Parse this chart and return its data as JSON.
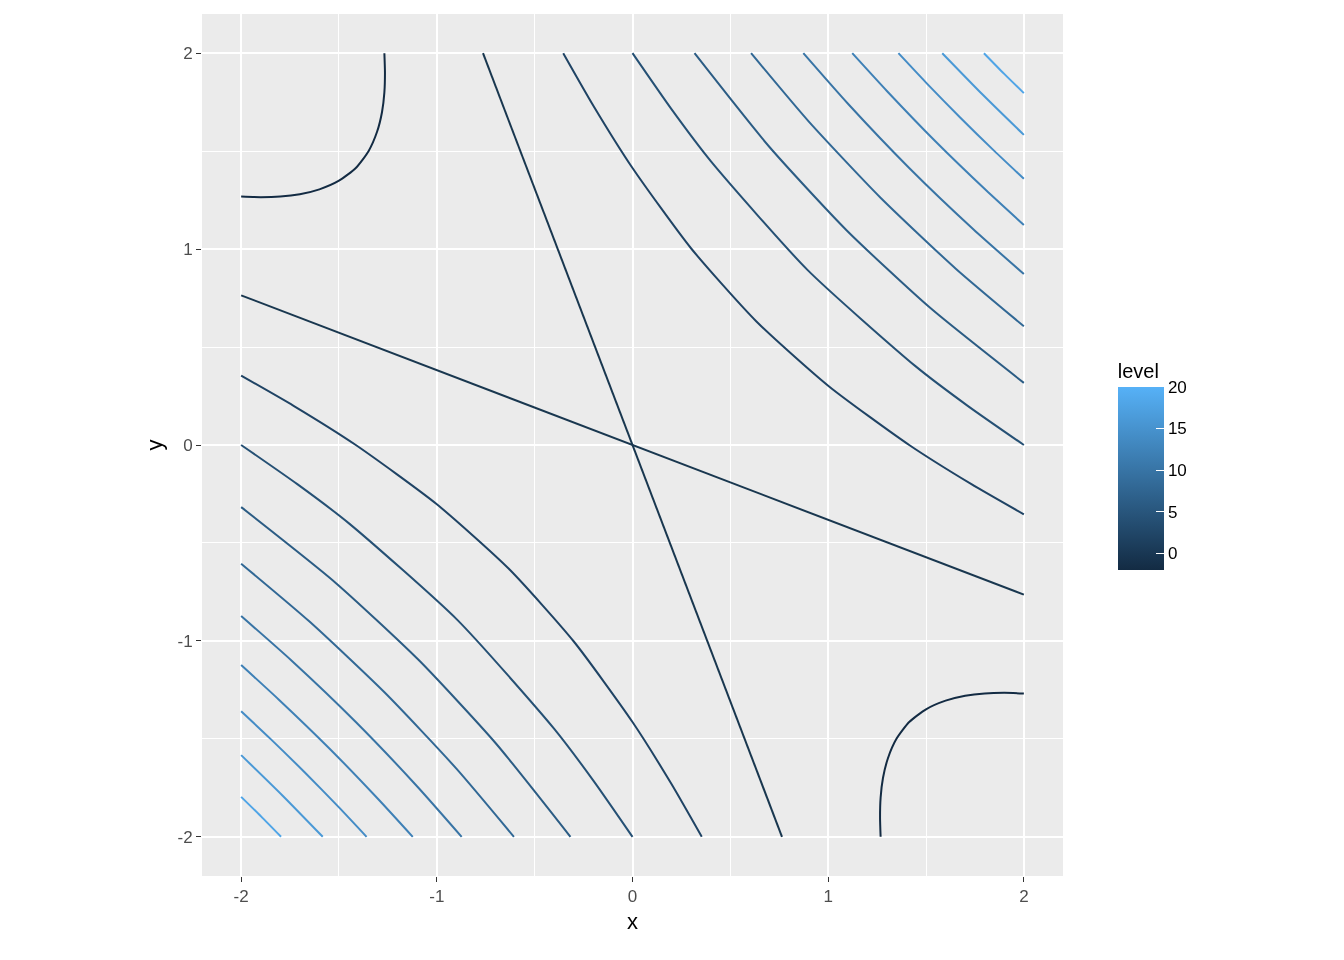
{
  "chart_data": {
    "type": "line",
    "xlabel": "x",
    "ylabel": "y",
    "clabel": "level",
    "clim": [
      -2,
      20
    ],
    "cticks": [
      0,
      5,
      10,
      15,
      20
    ],
    "xlim": [
      -2.2,
      2.2
    ],
    "ylim": [
      -2.2,
      2.2
    ],
    "xticks": [
      -2,
      -1,
      0,
      1,
      2
    ],
    "yticks": [
      -2,
      -1,
      0,
      1,
      2
    ],
    "grid": true,
    "marker": "none",
    "line_style": "solid",
    "series": [
      {
        "color": "#132b43",
        "x": [
          -2,
          -1.9,
          -1.8,
          -1.7,
          -1.6,
          -1.5,
          -1.414,
          -1.349,
          -1.305,
          -1.28,
          -1.268,
          -1.265,
          -1.268,
          null,
          2,
          1.9,
          1.8,
          1.7,
          1.6,
          1.5,
          1.414,
          1.349,
          1.305,
          1.28,
          1.268,
          1.265,
          1.268
        ],
        "values": [
          1.268,
          1.265,
          1.268,
          1.28,
          1.305,
          1.349,
          1.414,
          1.5,
          1.6,
          1.7,
          1.8,
          1.9,
          2,
          null,
          -1.268,
          -1.265,
          -1.268,
          -1.28,
          -1.305,
          -1.349,
          -1.414,
          -1.5,
          -1.6,
          -1.7,
          -1.8,
          -1.9,
          -2
        ]
      },
      {
        "color": "#19374f",
        "x": [
          -2,
          2,
          null,
          -0.764,
          0.764
        ],
        "values": [
          0.764,
          -0.764,
          null,
          2,
          -2
        ]
      },
      {
        "color": "#1f4364",
        "x": [
          -0.354,
          -0.2,
          0,
          0.3,
          0.632,
          1.003,
          1.414,
          1.732,
          2,
          null,
          0.354,
          0.2,
          0,
          -0.3,
          -0.632,
          -1.003,
          -1.414,
          -1.732,
          -2
        ],
        "values": [
          2,
          1.732,
          1.414,
          1.003,
          0.632,
          0.3,
          0,
          -0.2,
          -0.354,
          null,
          -2,
          -1.732,
          -1.414,
          -1.003,
          -0.632,
          -0.3,
          0,
          0.2,
          0.354
        ]
      },
      {
        "color": "#255074",
        "x": [
          0,
          0.2,
          0.4,
          0.894,
          1.449,
          1.713,
          2,
          null,
          0,
          -0.2,
          -0.4,
          -0.894,
          -1.449,
          -1.713,
          -2
        ],
        "values": [
          2,
          1.713,
          1.449,
          0.894,
          0.4,
          0.2,
          0,
          null,
          -2,
          -1.713,
          -1.449,
          -0.894,
          -0.4,
          -0.2,
          0
        ]
      },
      {
        "color": "#2b5c84",
        "x": [
          0.317,
          0.7,
          1.095,
          1.521,
          2,
          null,
          -0.317,
          -0.7,
          -1.095,
          -1.521,
          -2
        ],
        "values": [
          2,
          1.521,
          1.095,
          0.7,
          0.317,
          null,
          -2,
          -1.521,
          -1.095,
          -0.7,
          -0.317
        ]
      },
      {
        "color": "#316895",
        "x": [
          0.606,
          0.9,
          1.265,
          1.652,
          2,
          null,
          -0.606,
          -0.9,
          -1.265,
          -1.652,
          -2
        ],
        "values": [
          2,
          1.652,
          1.265,
          0.9,
          0.606,
          null,
          -2,
          -1.652,
          -1.265,
          -0.9,
          -0.606
        ]
      },
      {
        "color": "#3874a5",
        "x": [
          0.873,
          1.1,
          1.414,
          1.743,
          2,
          null,
          -0.873,
          -1.1,
          -1.414,
          -1.743,
          -2
        ],
        "values": [
          2,
          1.743,
          1.414,
          1.1,
          0.873,
          null,
          -2,
          -1.743,
          -1.414,
          -1.1,
          -0.873
        ]
      },
      {
        "color": "#3e80b6",
        "x": [
          1.123,
          1.3,
          1.549,
          1.807,
          2,
          null,
          -1.123,
          -1.3,
          -1.549,
          -1.807,
          -2
        ],
        "values": [
          2,
          1.807,
          1.549,
          1.3,
          1.123,
          null,
          -2,
          -1.807,
          -1.549,
          -1.3,
          -1.123
        ]
      },
      {
        "color": "#448cc6",
        "x": [
          1.359,
          1.5,
          1.673,
          1.85,
          2,
          null,
          -1.359,
          -1.5,
          -1.673,
          -1.85,
          -2
        ],
        "values": [
          2,
          1.85,
          1.673,
          1.5,
          1.359,
          null,
          -2,
          -1.85,
          -1.673,
          -1.5,
          -1.359
        ]
      },
      {
        "color": "#4a99d6",
        "x": [
          1.583,
          1.789,
          2,
          null,
          -1.583,
          -1.789,
          -2
        ],
        "values": [
          2,
          1.789,
          1.583,
          null,
          -2,
          -1.789,
          -1.583
        ]
      },
      {
        "color": "#50a5e7",
        "x": [
          1.796,
          1.897,
          2,
          null,
          -1.796,
          -1.897,
          -2
        ],
        "values": [
          2,
          1.897,
          1.796,
          null,
          -2,
          -1.897,
          -1.796
        ]
      }
    ]
  }
}
